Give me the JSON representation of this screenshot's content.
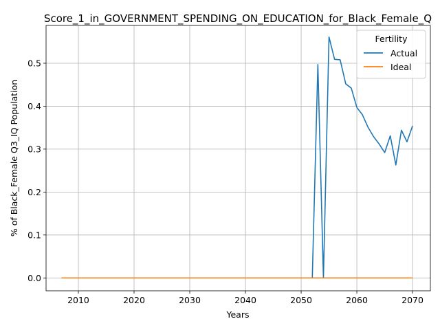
{
  "chart_data": {
    "type": "line",
    "title": "Score_1_in_GOVERNMENT_SPENDING_ON_EDUCATION_for_Black_Female_Q",
    "xlabel": "Years",
    "ylabel": "% of Black_Female Q3_IQ Population",
    "xlim": [
      2004.2,
      2073.2
    ],
    "ylim": [
      -0.03,
      0.588
    ],
    "xticks": [
      2010,
      2020,
      2030,
      2040,
      2050,
      2060,
      2070
    ],
    "yticks": [
      0.0,
      0.1,
      0.2,
      0.3,
      0.4,
      0.5
    ],
    "ytick_labels": [
      "0.0",
      "0.1",
      "0.2",
      "0.3",
      "0.4",
      "0.5"
    ],
    "grid": true,
    "legend": {
      "title": "Fertility",
      "position": "top-right"
    },
    "x": [
      2007,
      2008,
      2009,
      2010,
      2011,
      2012,
      2013,
      2014,
      2015,
      2016,
      2017,
      2018,
      2019,
      2020,
      2021,
      2022,
      2023,
      2024,
      2025,
      2026,
      2027,
      2028,
      2029,
      2030,
      2031,
      2032,
      2033,
      2034,
      2035,
      2036,
      2037,
      2038,
      2039,
      2040,
      2041,
      2042,
      2043,
      2044,
      2045,
      2046,
      2047,
      2048,
      2049,
      2050,
      2051,
      2052,
      2053,
      2054,
      2055,
      2056,
      2057,
      2058,
      2059,
      2060,
      2061,
      2062,
      2063,
      2064,
      2065,
      2066,
      2067,
      2068,
      2069,
      2070
    ],
    "series": [
      {
        "name": "Actual",
        "color": "#1f77b4",
        "values": [
          0,
          0,
          0,
          0,
          0,
          0,
          0,
          0,
          0,
          0,
          0,
          0,
          0,
          0,
          0,
          0,
          0,
          0,
          0,
          0,
          0,
          0,
          0,
          0,
          0,
          0,
          0,
          0,
          0,
          0,
          0,
          0,
          0,
          0,
          0,
          0,
          0,
          0,
          0,
          0,
          0,
          0,
          0,
          0,
          0,
          0,
          0.497,
          0,
          0.561,
          0.509,
          0.508,
          0.452,
          0.442,
          0.397,
          0.38,
          0.351,
          0.329,
          0.312,
          0.292,
          0.331,
          0.263,
          0.344,
          0.317,
          0.354
        ]
      },
      {
        "name": "Ideal",
        "color": "#ff7f0e",
        "values": [
          0,
          0,
          0,
          0,
          0,
          0,
          0,
          0,
          0,
          0,
          0,
          0,
          0,
          0,
          0,
          0,
          0,
          0,
          0,
          0,
          0,
          0,
          0,
          0,
          0,
          0,
          0,
          0,
          0,
          0,
          0,
          0,
          0,
          0,
          0,
          0,
          0,
          0,
          0,
          0,
          0,
          0,
          0,
          0,
          0,
          0,
          0,
          0,
          0,
          0,
          0,
          0,
          0,
          0,
          0,
          0,
          0,
          0,
          0,
          0,
          0,
          0,
          0,
          0
        ]
      }
    ]
  }
}
